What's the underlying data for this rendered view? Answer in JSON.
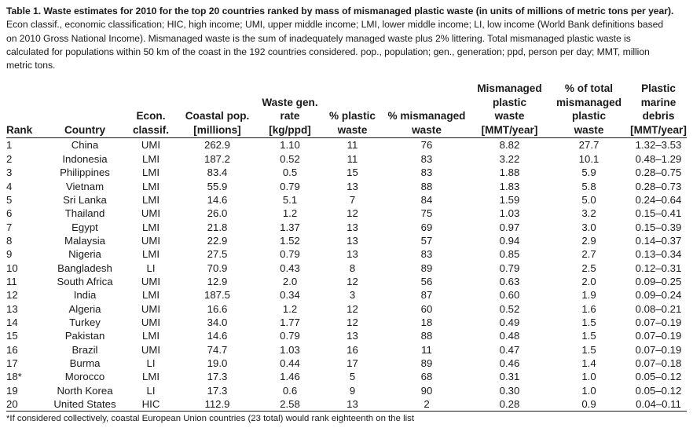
{
  "caption": {
    "title": "Table 1. Waste estimates for 2010 for the top 20 countries ranked by mass of mismanaged plastic waste (in units of millions of metric tons per year).",
    "lines": [
      "Econ classif., economic classification; HIC, high income; UMI, upper middle income; LMI, lower middle income; LI, low income (World Bank definitions based",
      "on 2010 Gross National Income). Mismanaged waste is the sum of inadequately managed waste plus 2% littering. Total mismanaged plastic waste is",
      "calculated for populations within 50 km of the coast in the 192 countries considered. pop., population; gen., generation; ppd, person per day; MMT, million",
      "metric tons."
    ]
  },
  "columns": [
    {
      "key": "rank",
      "lines": [
        "Rank"
      ]
    },
    {
      "key": "country",
      "lines": [
        "Country"
      ]
    },
    {
      "key": "econ",
      "lines": [
        "Econ.",
        "classif."
      ]
    },
    {
      "key": "pop",
      "lines": [
        "Coastal pop.",
        "[millions]"
      ]
    },
    {
      "key": "wastegen",
      "lines": [
        "Waste gen.",
        "rate",
        "[kg/ppd]"
      ]
    },
    {
      "key": "pctplastic",
      "lines": [
        "% plastic",
        "waste"
      ]
    },
    {
      "key": "pctmis",
      "lines": [
        "% mismanaged",
        "waste"
      ]
    },
    {
      "key": "mis",
      "lines": [
        "Mismanaged",
        "plastic",
        "waste",
        "[MMT/year]"
      ]
    },
    {
      "key": "pcttotal",
      "lines": [
        "% of total",
        "mismanaged",
        "plastic",
        "waste"
      ]
    },
    {
      "key": "debris",
      "lines": [
        "Plastic",
        "marine",
        "debris",
        "[MMT/year]"
      ]
    }
  ],
  "rows": [
    {
      "rank": "1",
      "country": "China",
      "econ": "UMI",
      "pop": "262.9",
      "wastegen": "1.10",
      "pctplastic": "11",
      "pctmis": "76",
      "mis": "8.82",
      "pcttotal": "27.7",
      "debris": "1.32–3.53"
    },
    {
      "rank": "2",
      "country": "Indonesia",
      "econ": "LMI",
      "pop": "187.2",
      "wastegen": "0.52",
      "pctplastic": "11",
      "pctmis": "83",
      "mis": "3.22",
      "pcttotal": "10.1",
      "debris": "0.48–1.29"
    },
    {
      "rank": "3",
      "country": "Philippines",
      "econ": "LMI",
      "pop": "83.4",
      "wastegen": "0.5",
      "pctplastic": "15",
      "pctmis": "83",
      "mis": "1.88",
      "pcttotal": "5.9",
      "debris": "0.28–0.75"
    },
    {
      "rank": "4",
      "country": "Vietnam",
      "econ": "LMI",
      "pop": "55.9",
      "wastegen": "0.79",
      "pctplastic": "13",
      "pctmis": "88",
      "mis": "1.83",
      "pcttotal": "5.8",
      "debris": "0.28–0.73"
    },
    {
      "rank": "5",
      "country": "Sri Lanka",
      "econ": "LMI",
      "pop": "14.6",
      "wastegen": "5.1",
      "pctplastic": "7",
      "pctmis": "84",
      "mis": "1.59",
      "pcttotal": "5.0",
      "debris": "0.24–0.64"
    },
    {
      "rank": "6",
      "country": "Thailand",
      "econ": "UMI",
      "pop": "26.0",
      "wastegen": "1.2",
      "pctplastic": "12",
      "pctmis": "75",
      "mis": "1.03",
      "pcttotal": "3.2",
      "debris": "0.15–0.41"
    },
    {
      "rank": "7",
      "country": "Egypt",
      "econ": "LMI",
      "pop": "21.8",
      "wastegen": "1.37",
      "pctplastic": "13",
      "pctmis": "69",
      "mis": "0.97",
      "pcttotal": "3.0",
      "debris": "0.15–0.39"
    },
    {
      "rank": "8",
      "country": "Malaysia",
      "econ": "UMI",
      "pop": "22.9",
      "wastegen": "1.52",
      "pctplastic": "13",
      "pctmis": "57",
      "mis": "0.94",
      "pcttotal": "2.9",
      "debris": "0.14–0.37"
    },
    {
      "rank": "9",
      "country": "Nigeria",
      "econ": "LMI",
      "pop": "27.5",
      "wastegen": "0.79",
      "pctplastic": "13",
      "pctmis": "83",
      "mis": "0.85",
      "pcttotal": "2.7",
      "debris": "0.13–0.34"
    },
    {
      "rank": "10",
      "country": "Bangladesh",
      "econ": "LI",
      "pop": "70.9",
      "wastegen": "0.43",
      "pctplastic": "8",
      "pctmis": "89",
      "mis": "0.79",
      "pcttotal": "2.5",
      "debris": "0.12–0.31"
    },
    {
      "rank": "11",
      "country": "South Africa",
      "econ": "UMI",
      "pop": "12.9",
      "wastegen": "2.0",
      "pctplastic": "12",
      "pctmis": "56",
      "mis": "0.63",
      "pcttotal": "2.0",
      "debris": "0.09–0.25"
    },
    {
      "rank": "12",
      "country": "India",
      "econ": "LMI",
      "pop": "187.5",
      "wastegen": "0.34",
      "pctplastic": "3",
      "pctmis": "87",
      "mis": "0.60",
      "pcttotal": "1.9",
      "debris": "0.09–0.24"
    },
    {
      "rank": "13",
      "country": "Algeria",
      "econ": "UMI",
      "pop": "16.6",
      "wastegen": "1.2",
      "pctplastic": "12",
      "pctmis": "60",
      "mis": "0.52",
      "pcttotal": "1.6",
      "debris": "0.08–0.21"
    },
    {
      "rank": "14",
      "country": "Turkey",
      "econ": "UMI",
      "pop": "34.0",
      "wastegen": "1.77",
      "pctplastic": "12",
      "pctmis": "18",
      "mis": "0.49",
      "pcttotal": "1.5",
      "debris": "0.07–0.19"
    },
    {
      "rank": "15",
      "country": "Pakistan",
      "econ": "LMI",
      "pop": "14.6",
      "wastegen": "0.79",
      "pctplastic": "13",
      "pctmis": "88",
      "mis": "0.48",
      "pcttotal": "1.5",
      "debris": "0.07–0.19"
    },
    {
      "rank": "16",
      "country": "Brazil",
      "econ": "UMI",
      "pop": "74.7",
      "wastegen": "1.03",
      "pctplastic": "16",
      "pctmis": "11",
      "mis": "0.47",
      "pcttotal": "1.5",
      "debris": "0.07–0.19"
    },
    {
      "rank": "17",
      "country": "Burma",
      "econ": "LI",
      "pop": "19.0",
      "wastegen": "0.44",
      "pctplastic": "17",
      "pctmis": "89",
      "mis": "0.46",
      "pcttotal": "1.4",
      "debris": "0.07–0.18"
    },
    {
      "rank": "18*",
      "country": "Morocco",
      "econ": "LMI",
      "pop": "17.3",
      "wastegen": "1.46",
      "pctplastic": "5",
      "pctmis": "68",
      "mis": "0.31",
      "pcttotal": "1.0",
      "debris": "0.05–0.12"
    },
    {
      "rank": "19",
      "country": "North Korea",
      "econ": "LI",
      "pop": "17.3",
      "wastegen": "0.6",
      "pctplastic": "9",
      "pctmis": "90",
      "mis": "0.30",
      "pcttotal": "1.0",
      "debris": "0.05–0.12"
    },
    {
      "rank": "20",
      "country": "United States",
      "econ": "HIC",
      "pop": "112.9",
      "wastegen": "2.58",
      "pctplastic": "13",
      "pctmis": "2",
      "mis": "0.28",
      "pcttotal": "0.9",
      "debris": "0.04–0.11"
    }
  ],
  "footnote": "*If considered collectively, coastal European Union countries (23 total) would rank eighteenth on the list"
}
